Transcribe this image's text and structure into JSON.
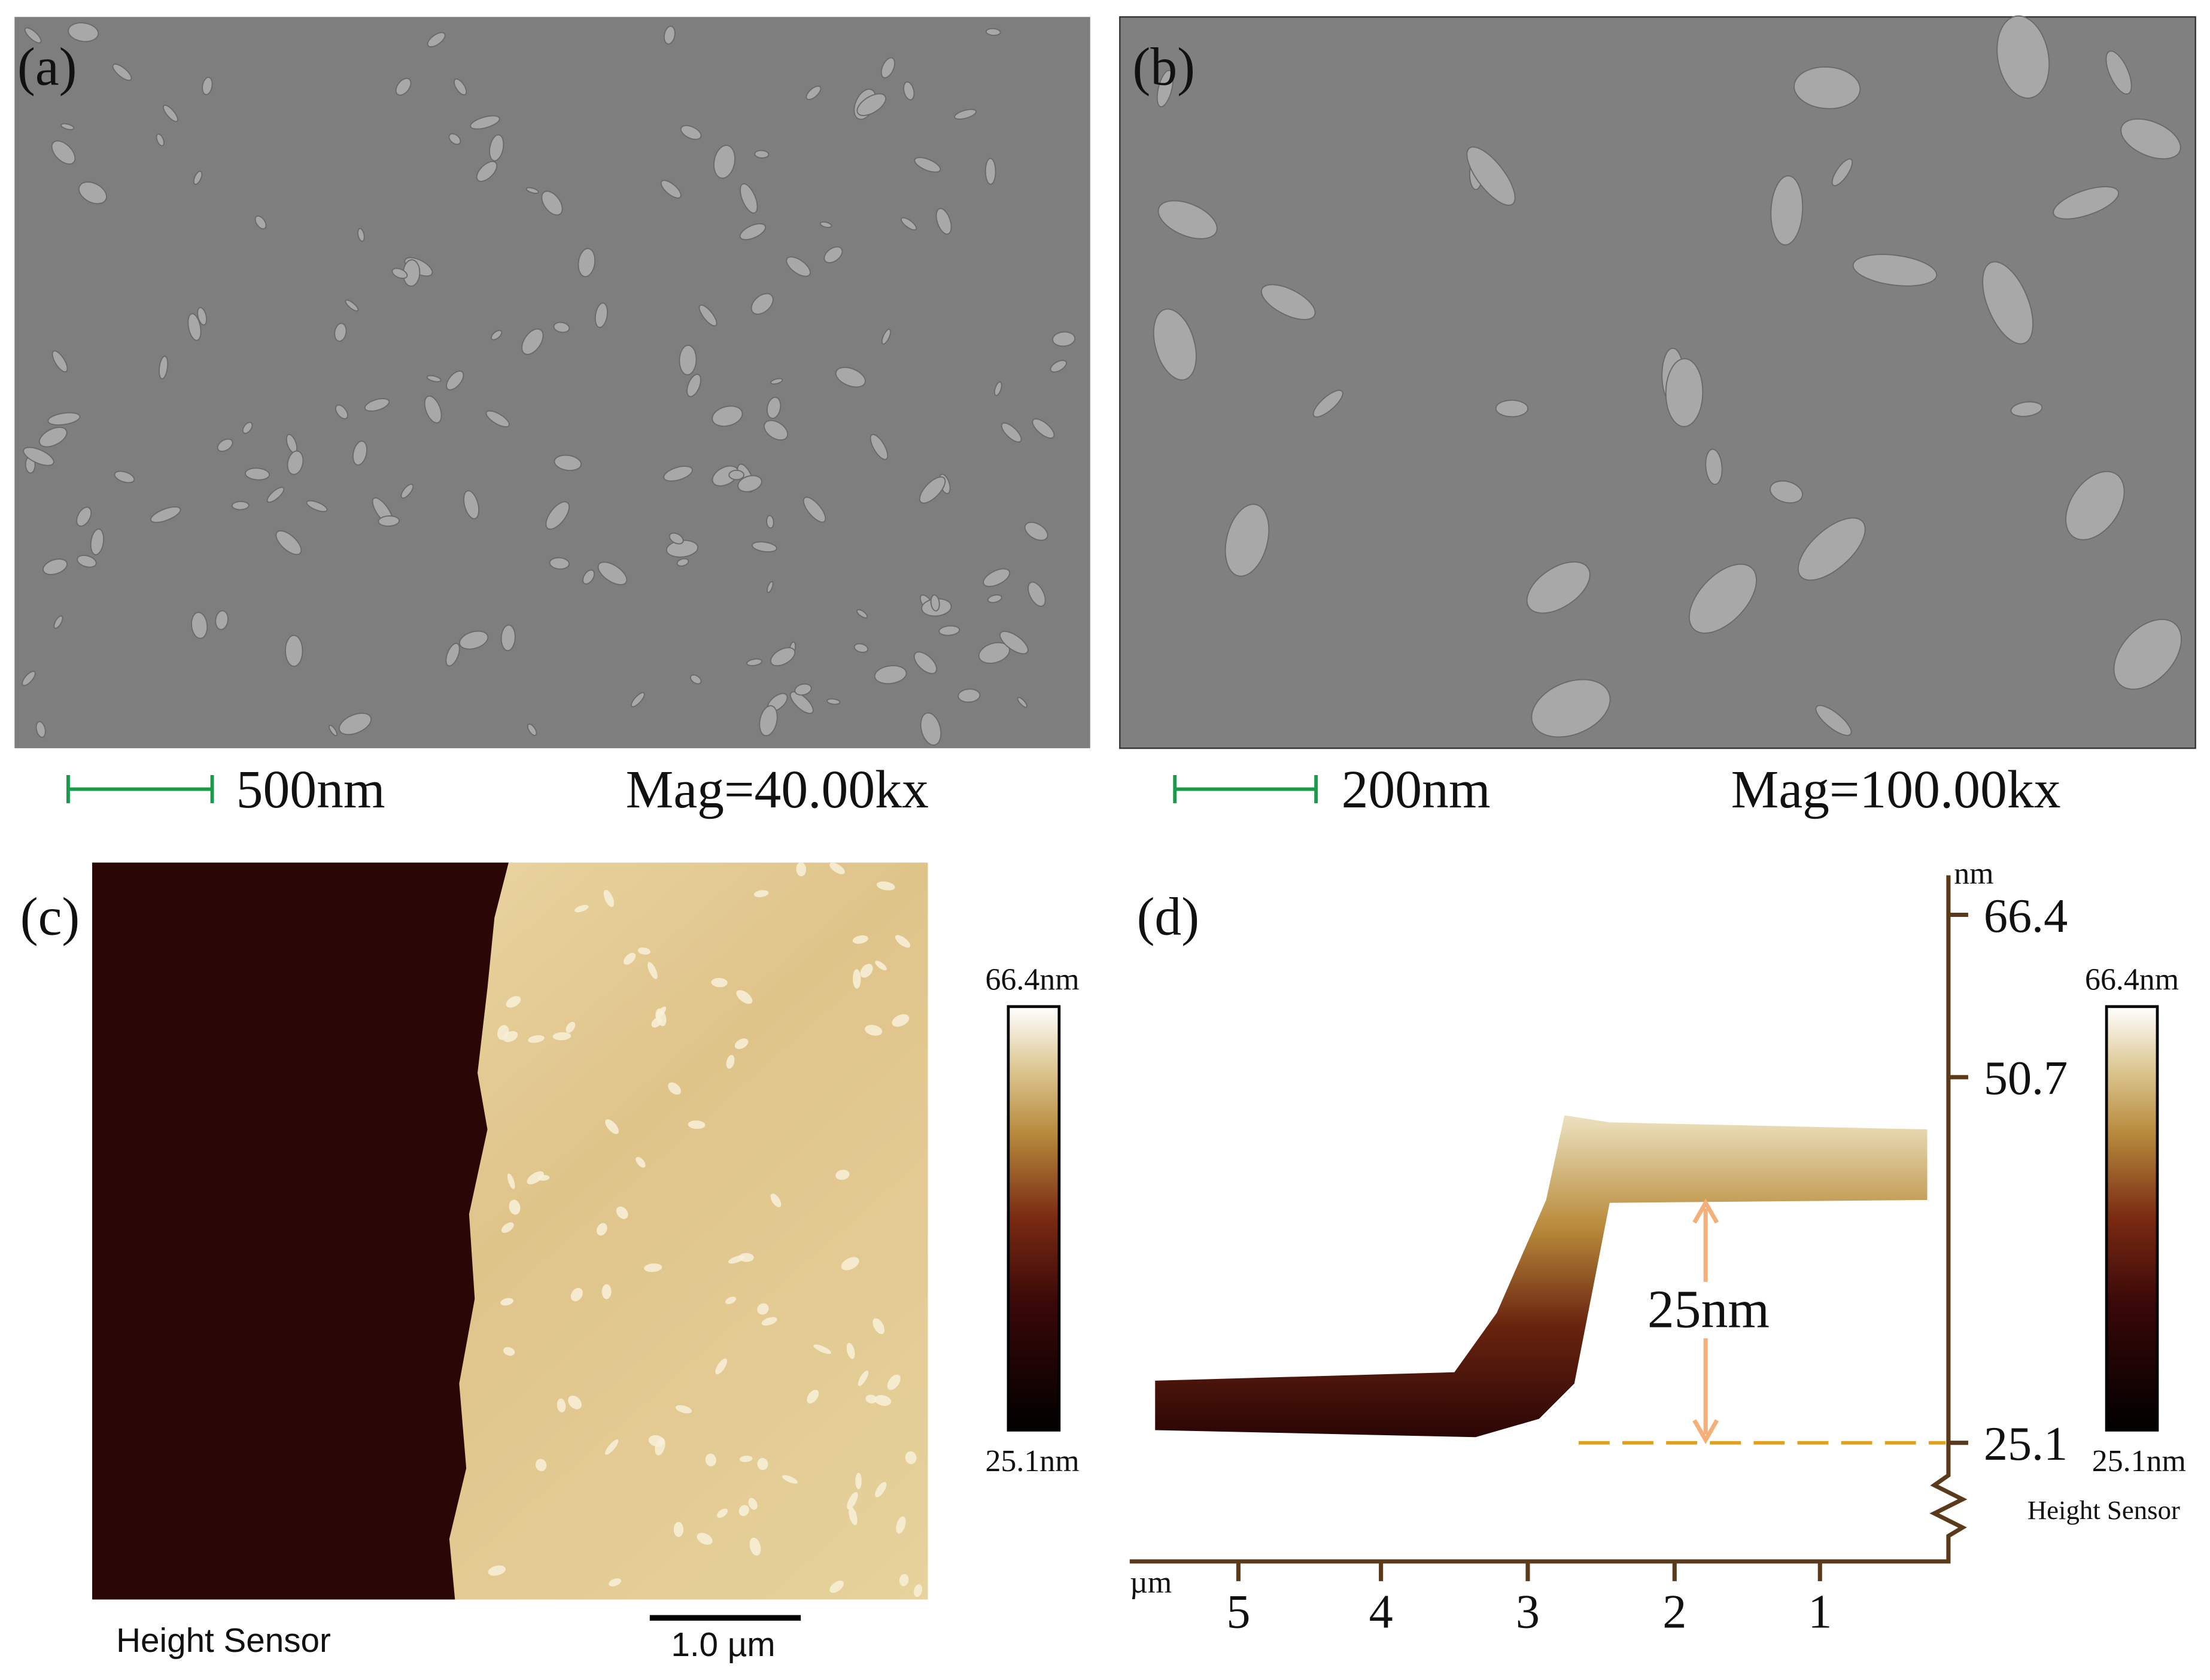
{
  "panels": [
    {
      "label": "(a)",
      "scale_bar": "500nm",
      "magnification": "Mag=40.00kx"
    },
    {
      "label": "(b)",
      "scale_bar": "200nm",
      "magnification": "Mag=100.00kx"
    },
    {
      "label": "(c)",
      "colorbar_max": "66.4nm",
      "colorbar_min": "25.1nm",
      "channel": "Height Sensor",
      "scale_bar": "1.0 µm"
    },
    {
      "label": "(d)",
      "z_unit": "nm",
      "z_ticks": [
        "66.4",
        "50.7",
        "25.1"
      ],
      "x_unit": "µm",
      "x_ticks": [
        "5",
        "4",
        "3",
        "2",
        "1"
      ],
      "step_height": "25nm",
      "colorbar_max": "66.4nm",
      "colorbar_min": "25.1nm",
      "channel": "Height Sensor"
    }
  ]
}
